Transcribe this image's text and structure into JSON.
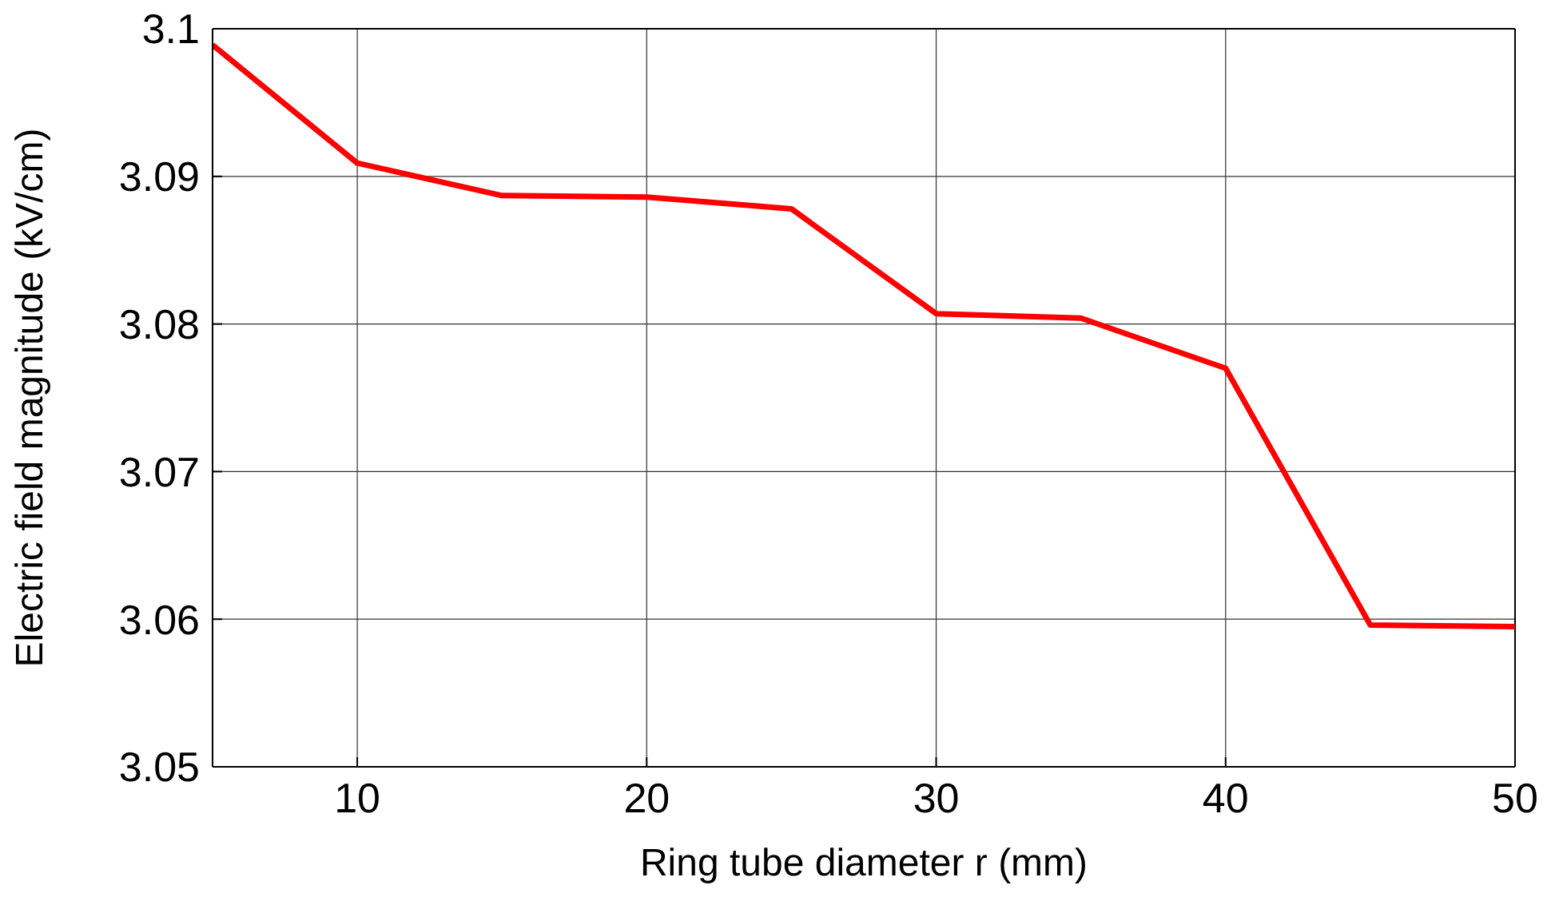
{
  "chart_data": {
    "type": "line",
    "xlabel": "Ring tube diameter r (mm)",
    "ylabel": "Electric field magnitude (kV/cm)",
    "x": [
      5,
      10,
      15,
      20,
      25,
      30,
      35,
      40,
      45,
      50
    ],
    "series": [
      {
        "color": "#ff0000",
        "values": [
          3.0989,
          3.0909,
          3.0887,
          3.0886,
          3.0878,
          3.0807,
          3.0804,
          3.077,
          3.0596,
          3.0595
        ]
      }
    ],
    "xlim": [
      5,
      50
    ],
    "xticks": [
      10,
      20,
      30,
      40,
      50
    ],
    "ylim": [
      3.05,
      3.1
    ],
    "yticks": [
      3.05,
      3.06,
      3.07,
      3.08,
      3.09,
      3.1
    ],
    "grid": true,
    "legend": false,
    "marker": "none",
    "line_style": "solid"
  }
}
